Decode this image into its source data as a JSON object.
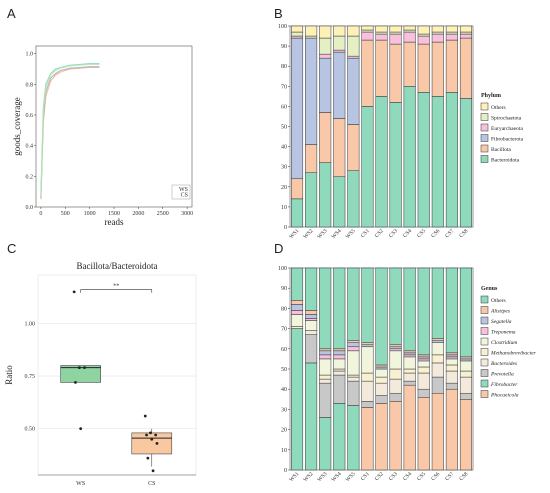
{
  "panels": {
    "a": "A",
    "b": "B",
    "c": "C",
    "d": "D"
  },
  "chart_data": [
    {
      "id": "A",
      "type": "line",
      "xlabel": "reads",
      "ylabel": "goods_coverage",
      "xticks": [
        0,
        500,
        1000,
        1500,
        2000,
        2500,
        3000
      ],
      "yticks": [
        0.0,
        0.2,
        0.4,
        0.6,
        0.8,
        1.0
      ],
      "xlim": [
        -100,
        3100
      ],
      "ylim": [
        0,
        1.05
      ],
      "legend": [
        "WS",
        "CS"
      ],
      "series": [
        {
          "name": "WS",
          "color": "#f4b183",
          "x": [
            0,
            50,
            100,
            200,
            300,
            400,
            600,
            800,
            1000,
            1200
          ],
          "y": [
            0.05,
            0.55,
            0.72,
            0.82,
            0.86,
            0.88,
            0.9,
            0.905,
            0.91,
            0.91
          ]
        },
        {
          "name": "WS",
          "color": "#a6a6d6",
          "x": [
            0,
            50,
            100,
            200,
            300,
            400,
            600,
            800,
            1000,
            1200
          ],
          "y": [
            0.06,
            0.58,
            0.75,
            0.84,
            0.87,
            0.89,
            0.905,
            0.91,
            0.915,
            0.915
          ]
        },
        {
          "name": "CS",
          "color": "#7fd8b0",
          "x": [
            0,
            50,
            100,
            200,
            300,
            400,
            600,
            800,
            1000,
            1200
          ],
          "y": [
            0.08,
            0.65,
            0.8,
            0.87,
            0.9,
            0.91,
            0.925,
            0.93,
            0.935,
            0.935
          ]
        },
        {
          "name": "CS",
          "color": "#b8e6a8",
          "x": [
            0,
            50,
            100,
            200,
            300,
            400,
            600,
            800,
            1000,
            1200
          ],
          "y": [
            0.07,
            0.62,
            0.78,
            0.86,
            0.89,
            0.905,
            0.92,
            0.925,
            0.93,
            0.93
          ]
        }
      ]
    },
    {
      "id": "B",
      "type": "bar",
      "stacked": true,
      "categories": [
        "WS1",
        "WS2",
        "WS3",
        "WS4",
        "WS5",
        "CS1",
        "CS2",
        "CS3",
        "CS4",
        "CS5",
        "CS6",
        "CS7",
        "CS8"
      ],
      "yticks": [
        0,
        10,
        20,
        30,
        40,
        50,
        60,
        70,
        80,
        90,
        100
      ],
      "ylim": [
        0,
        100
      ],
      "legend_title": "Phylum",
      "series": [
        {
          "name": "Bacteroidota",
          "color": "#8fd9bd",
          "values": [
            14,
            27,
            32,
            25,
            28,
            60,
            65,
            62,
            70,
            67,
            65,
            67,
            64
          ]
        },
        {
          "name": "Bacillota",
          "color": "#f8c8a8",
          "values": [
            10,
            14,
            25,
            29,
            23,
            33,
            28,
            29,
            22,
            24,
            27,
            26,
            30
          ]
        },
        {
          "name": "Fibrobacterota",
          "color": "#b8c5e2",
          "values": [
            70,
            53,
            27,
            33,
            33,
            0,
            0,
            0,
            0,
            0,
            0,
            0,
            0
          ]
        },
        {
          "name": "Euryarchaeota",
          "color": "#f7c1dd",
          "values": [
            1,
            0,
            2,
            1,
            1,
            4,
            3,
            5,
            5,
            4,
            4,
            3,
            2
          ]
        },
        {
          "name": "Spirochaetota",
          "color": "#e4efc4",
          "values": [
            2,
            1,
            8,
            7,
            10,
            1,
            1,
            1,
            1,
            1,
            1,
            1,
            1
          ]
        },
        {
          "name": "Others",
          "color": "#fdf1b8",
          "values": [
            3,
            5,
            6,
            5,
            5,
            2,
            3,
            3,
            2,
            4,
            3,
            3,
            3
          ]
        }
      ]
    },
    {
      "id": "C",
      "type": "box",
      "title": "Bacillota/Bacteroidota",
      "ylabel": "Ratio",
      "categories": [
        "WS",
        "CS"
      ],
      "yticks": [
        0.5,
        0.75,
        1.0
      ],
      "ylim": [
        0.28,
        1.23
      ],
      "annotation": "**",
      "boxes": [
        {
          "name": "WS",
          "color": "#8fd4a0",
          "q1": 0.72,
          "median": 0.79,
          "q3": 0.8,
          "whisker_low": 0.72,
          "whisker_high": 0.8,
          "points": [
            1.15,
            0.79,
            0.79,
            0.72,
            0.5
          ]
        },
        {
          "name": "CS",
          "color": "#f8c8a0",
          "q1": 0.38,
          "median": 0.455,
          "q3": 0.48,
          "whisker_low": 0.32,
          "whisker_high": 0.5,
          "points": [
            0.56,
            0.48,
            0.47,
            0.47,
            0.45,
            0.43,
            0.36,
            0.3
          ]
        }
      ]
    },
    {
      "id": "D",
      "type": "bar",
      "stacked": true,
      "categories": [
        "WS1",
        "WS2",
        "WS3",
        "WS4",
        "WS5",
        "CS1",
        "CS2",
        "CS3",
        "CS4",
        "CS5",
        "CS6",
        "CS7",
        "CS8"
      ],
      "yticks": [
        0,
        10,
        20,
        30,
        40,
        50,
        60,
        70,
        80,
        90,
        100
      ],
      "ylim": [
        0,
        100
      ],
      "legend_title": "Genus",
      "series": [
        {
          "name": "Phocaeicola",
          "color": "#f8c8a8",
          "values": [
            0,
            0,
            0,
            0,
            0,
            31,
            33,
            34,
            42,
            36,
            38,
            40,
            35
          ]
        },
        {
          "name": "Fibrobacter",
          "color": "#8fd9bd",
          "values": [
            70,
            53,
            26,
            33,
            32,
            0,
            0,
            0,
            0,
            0,
            0,
            0,
            0
          ]
        },
        {
          "name": "Prevotella",
          "color": "#c8c8c8",
          "values": [
            0,
            14,
            17,
            14,
            12,
            3,
            4,
            4,
            2,
            4,
            8,
            3,
            3
          ]
        },
        {
          "name": "Bacteroides",
          "color": "#f3eadc",
          "values": [
            0,
            2,
            2,
            2,
            2,
            10,
            6,
            7,
            4,
            8,
            7,
            6,
            8
          ]
        },
        {
          "name": "Methanobrevibacter",
          "color": "#f8f0d0",
          "values": [
            1,
            0,
            2,
            1,
            1,
            4,
            3,
            5,
            2,
            3,
            4,
            3,
            3
          ]
        },
        {
          "name": "Clostridium",
          "color": "#f0f5dc",
          "values": [
            6,
            5,
            8,
            5,
            12,
            13,
            4,
            9,
            6,
            3,
            6,
            3,
            5
          ]
        },
        {
          "name": "Treponema",
          "color": "#f7c1dd",
          "values": [
            2,
            1,
            2,
            2,
            2,
            0,
            0,
            1,
            1,
            1,
            0,
            1,
            0
          ]
        },
        {
          "name": "Segatella",
          "color": "#b8c5e2",
          "values": [
            3,
            2,
            2,
            2,
            2,
            1,
            1,
            1,
            1,
            1,
            1,
            1,
            1
          ]
        },
        {
          "name": "Alistipes",
          "color": "#f8c8a8",
          "values": [
            2,
            2,
            1,
            1,
            1,
            1,
            1,
            1,
            1,
            1,
            1,
            1,
            1
          ]
        },
        {
          "name": "Others",
          "color": "#8fd9bd",
          "values": [
            16,
            21,
            40,
            40,
            36,
            37,
            48,
            38,
            41,
            43,
            35,
            42,
            44
          ]
        }
      ]
    }
  ]
}
